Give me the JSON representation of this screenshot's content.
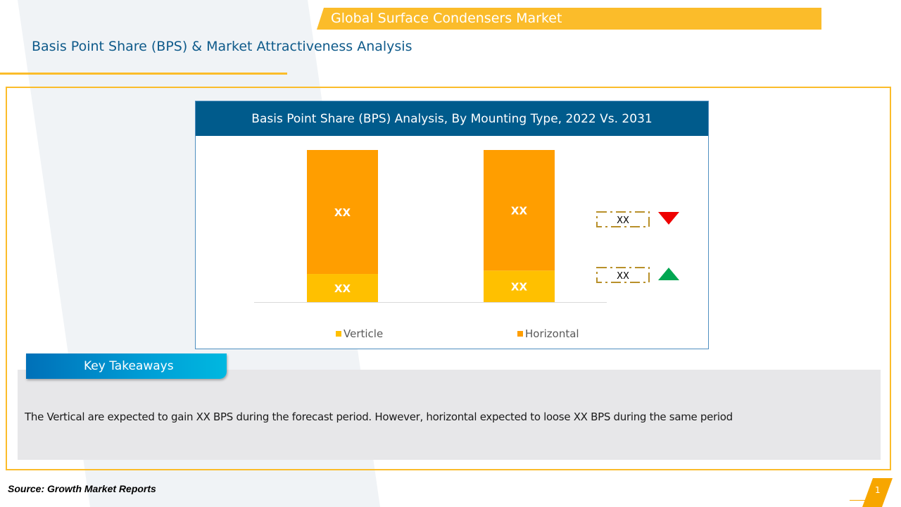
{
  "slide": {
    "banner_title": "Global Surface Condensers Market",
    "subtitle": "Basis Point Share (BPS) & Market Attractiveness Analysis",
    "source": "Source: Growth Market Reports",
    "page_number": "1"
  },
  "chart": {
    "header": "Basis Point Share (BPS) Analysis, By Mounting Type, 2022 Vs. 2031",
    "legend_verticle": "Verticle",
    "legend_horizontal": "Horizontal",
    "change_down_label": "XX",
    "change_up_label": "XX"
  },
  "chart_data": {
    "type": "bar",
    "stacked": true,
    "categories": [
      "",
      ""
    ],
    "series": [
      {
        "name": "Verticle",
        "values": [
          18.5,
          20.7
        ],
        "labels": [
          "XX",
          "XX"
        ],
        "color": "#ffc000"
      },
      {
        "name": "Horizontal",
        "values": [
          81.5,
          79.3
        ],
        "labels": [
          "XX",
          "XX"
        ],
        "color": "#ff9e00"
      }
    ],
    "ylim": [
      0,
      100
    ],
    "grid": false,
    "legend": "bottom",
    "indicators": [
      {
        "label": "XX",
        "direction": "down",
        "color": "#ee0000"
      },
      {
        "label": "XX",
        "direction": "up",
        "color": "#00a651"
      }
    ]
  },
  "takeaways": {
    "tab_label": "Key Takeaways",
    "text": "The Vertical are expected to gain XX BPS during the forecast period. However, horizontal expected to loose XX BPS during the same period"
  },
  "colors": {
    "accent": "#fbbc2a",
    "header_blue": "#005b8c",
    "verticle": "#ffc000",
    "horizontal": "#ff9e00"
  }
}
